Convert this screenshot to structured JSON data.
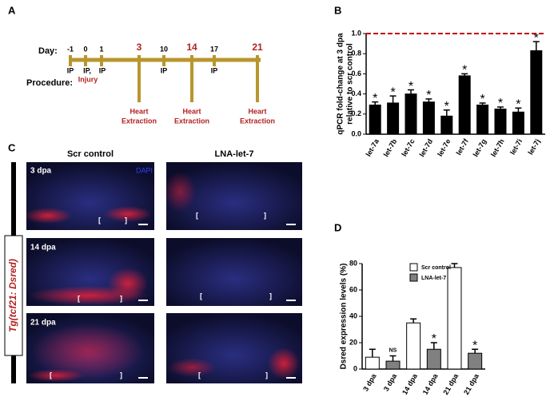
{
  "panel_labels": [
    "A",
    "B",
    "C",
    "D"
  ],
  "panel_a": {
    "day_label": "Day:",
    "procedure_label": "Procedure:",
    "days": [
      "-1",
      "0",
      "1",
      "3",
      "10",
      "14",
      "17",
      "21"
    ],
    "ip": [
      "IP",
      "IP,",
      "IP",
      "IP",
      "IP"
    ],
    "injury": "Injury",
    "extraction": [
      "Heart",
      "Extraction"
    ]
  },
  "panel_c": {
    "columns": [
      "Scr control",
      "LNA-let-7"
    ],
    "rows": [
      "3 dpa",
      "14 dpa",
      "21 dpa"
    ],
    "stain": "DAPI",
    "line": "Tg(tcf21: Dsred)"
  },
  "chart_data": [
    {
      "type": "bar",
      "ylabel": [
        "qPCR fold-change at 3 dpa",
        "relative to scr control"
      ],
      "categories": [
        "let-7a",
        "let-7b",
        "let-7c",
        "let-7d",
        "let-7e",
        "let-7f",
        "let-7g",
        "let-7h",
        "let-7i",
        "let-7j"
      ],
      "values": [
        0.29,
        0.31,
        0.4,
        0.32,
        0.18,
        0.58,
        0.29,
        0.25,
        0.22,
        0.83
      ],
      "errors": [
        0.03,
        0.07,
        0.04,
        0.03,
        0.06,
        0.02,
        0.02,
        0.02,
        0.04,
        0.09
      ],
      "annotations": [
        "*",
        "*",
        "*",
        "*",
        "*",
        "*",
        "*",
        "*",
        "*",
        "*"
      ],
      "color": "#000000",
      "ylim": [
        0,
        1.0
      ],
      "yticks": [
        {
          "value": 0,
          "label": "0.0"
        },
        0.2,
        0.4,
        0.6,
        0.8,
        {
          "value": 1,
          "label": "1.0"
        }
      ],
      "reference_line": {
        "value": 1.0,
        "color": "#c00000",
        "style": "dashed"
      }
    },
    {
      "type": "bar",
      "ylabel": [
        "Dsred expression levels (%)"
      ],
      "categories": [
        "3 dpa",
        "3 dpa",
        "14 dpa",
        "14 dpa",
        "21 dpa",
        "21 dpa"
      ],
      "series": [
        {
          "name": "Scr control",
          "color": "#ffffff",
          "values": [
            9,
            null,
            35,
            null,
            77,
            null
          ],
          "errors": [
            6,
            null,
            3,
            null,
            3,
            null
          ]
        },
        {
          "name": "LNA-let-7",
          "color": "#808080",
          "values": [
            null,
            6,
            null,
            15,
            null,
            12
          ],
          "errors": [
            null,
            4,
            null,
            5,
            null,
            3
          ]
        }
      ],
      "annotations": [
        null,
        "NS",
        null,
        "*",
        null,
        "*"
      ],
      "ylim": [
        0,
        80
      ],
      "yticks": [
        0,
        20,
        40,
        60,
        80
      ],
      "legend": "top-left"
    }
  ]
}
